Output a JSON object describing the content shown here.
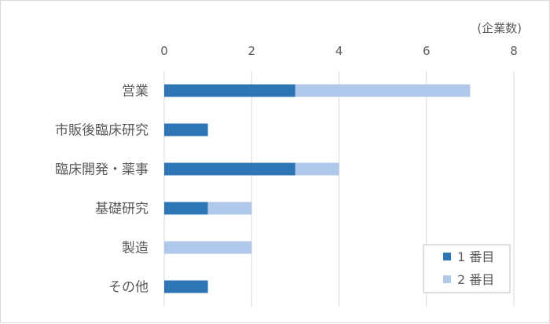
{
  "chart_data": {
    "type": "bar",
    "orientation": "horizontal",
    "stacked": true,
    "title": "",
    "unit_label": "(企業数)",
    "xlim": [
      0,
      8
    ],
    "xticks": [
      0,
      2,
      4,
      6,
      8
    ],
    "grid": true,
    "x_axis_position": "top",
    "legend_placement": "bottom-right",
    "categories": [
      "営業",
      "市販後臨床研究",
      "臨床開発・薬事",
      "基礎研究",
      "製造",
      "その他"
    ],
    "series": [
      {
        "name": "1 番目",
        "color": "#2E75B6",
        "values": [
          3,
          1,
          3,
          1,
          0,
          1
        ]
      },
      {
        "name": "2 番目",
        "color": "#B0C9EA",
        "values": [
          4,
          0,
          1,
          1,
          2,
          0
        ]
      }
    ]
  }
}
